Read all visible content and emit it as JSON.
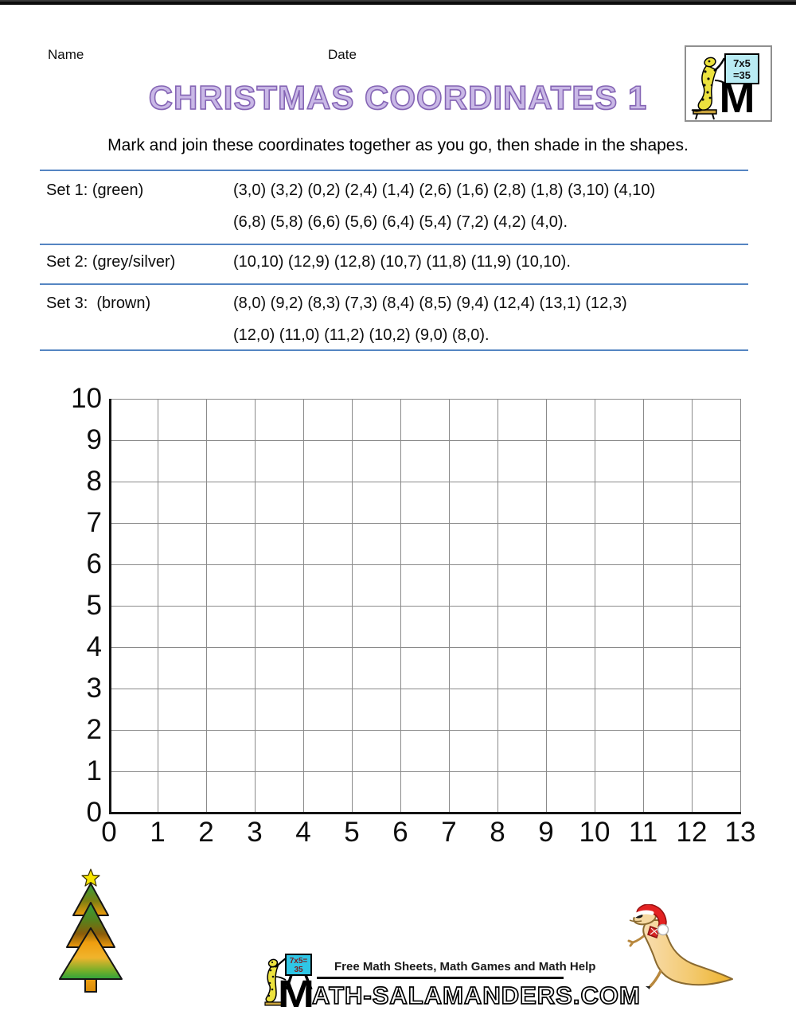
{
  "worksheet": {
    "name_label": "Name",
    "date_label": "Date",
    "title": "CHRISTMAS COORDINATES 1",
    "instruction": "Mark and join these coordinates together as you go, then shade in the shapes."
  },
  "sets": [
    {
      "label": "Set 1: (green)",
      "lines": [
        "(3,0) (3,2) (0,2) (2,4) (1,4) (2,6) (1,6) (2,8) (1,8) (3,10) (4,10)",
        "(6,8) (5,8) (6,6) (5,6) (6,4) (5,4) (7,2) (4,2) (4,0)."
      ]
    },
    {
      "label": "Set 2: (grey/silver)",
      "lines": [
        "(10,10) (12,9) (12,8) (10,7) (11,8) (11,9) (10,10)."
      ]
    },
    {
      "label": "Set 3:  (brown)",
      "lines": [
        "(8,0) (9,2) (8,3) (7,3) (8,4) (8,5) (9,4) (12,4) (13,1) (12,3)",
        "(12,0) (11,0) (11,2) (10,2) (9,0) (8,0)."
      ]
    }
  ],
  "chart_data": {
    "type": "scatter",
    "title": "",
    "xlabel": "",
    "ylabel": "",
    "xlim": [
      0,
      13
    ],
    "ylim": [
      0,
      10
    ],
    "x_ticks": [
      0,
      1,
      2,
      3,
      4,
      5,
      6,
      7,
      8,
      9,
      10,
      11,
      12,
      13
    ],
    "y_ticks": [
      0,
      1,
      2,
      3,
      4,
      5,
      6,
      7,
      8,
      9,
      10
    ],
    "grid": true,
    "legend_position": "none",
    "series": [
      {
        "name": "Set 1 (green)",
        "color": "green",
        "points": [
          [
            3,
            0
          ],
          [
            3,
            2
          ],
          [
            0,
            2
          ],
          [
            2,
            4
          ],
          [
            1,
            4
          ],
          [
            2,
            6
          ],
          [
            1,
            6
          ],
          [
            2,
            8
          ],
          [
            1,
            8
          ],
          [
            3,
            10
          ],
          [
            4,
            10
          ],
          [
            6,
            8
          ],
          [
            5,
            8
          ],
          [
            6,
            6
          ],
          [
            5,
            6
          ],
          [
            6,
            4
          ],
          [
            5,
            4
          ],
          [
            7,
            2
          ],
          [
            4,
            2
          ],
          [
            4,
            0
          ]
        ]
      },
      {
        "name": "Set 2 (grey/silver)",
        "color": "grey/silver",
        "points": [
          [
            10,
            10
          ],
          [
            12,
            9
          ],
          [
            12,
            8
          ],
          [
            10,
            7
          ],
          [
            11,
            8
          ],
          [
            11,
            9
          ],
          [
            10,
            10
          ]
        ]
      },
      {
        "name": "Set 3 (brown)",
        "color": "brown",
        "points": [
          [
            8,
            0
          ],
          [
            9,
            2
          ],
          [
            8,
            3
          ],
          [
            7,
            3
          ],
          [
            8,
            4
          ],
          [
            8,
            5
          ],
          [
            9,
            4
          ],
          [
            12,
            4
          ],
          [
            13,
            1
          ],
          [
            12,
            3
          ],
          [
            12,
            0
          ],
          [
            11,
            0
          ],
          [
            11,
            2
          ],
          [
            10,
            2
          ],
          [
            9,
            0
          ],
          [
            8,
            0
          ]
        ]
      }
    ]
  },
  "logo_top_right": {
    "board_line1": "7x5",
    "board_line2": "=35",
    "monogram": "M"
  },
  "footer": {
    "tagline": "Free Math Sheets, Math Games and Math Help",
    "brand_m": "M",
    "brand_rest": "ATH-SALAMANDERS.COM",
    "board_line1": "7x5=",
    "board_line2": "35"
  },
  "colors": {
    "title_fill": "#c9b8e6",
    "title_outline": "#8565b5",
    "separator_blue": "#5585c2",
    "grid_line": "#8a8a8a",
    "axis": "#141414",
    "sign_cyan": "#2fc6e6",
    "salamander_yellow": "#ece23e",
    "tree_green": "#2fa33c",
    "tree_orange": "#f09c0c",
    "santa_red": "#e32222"
  }
}
